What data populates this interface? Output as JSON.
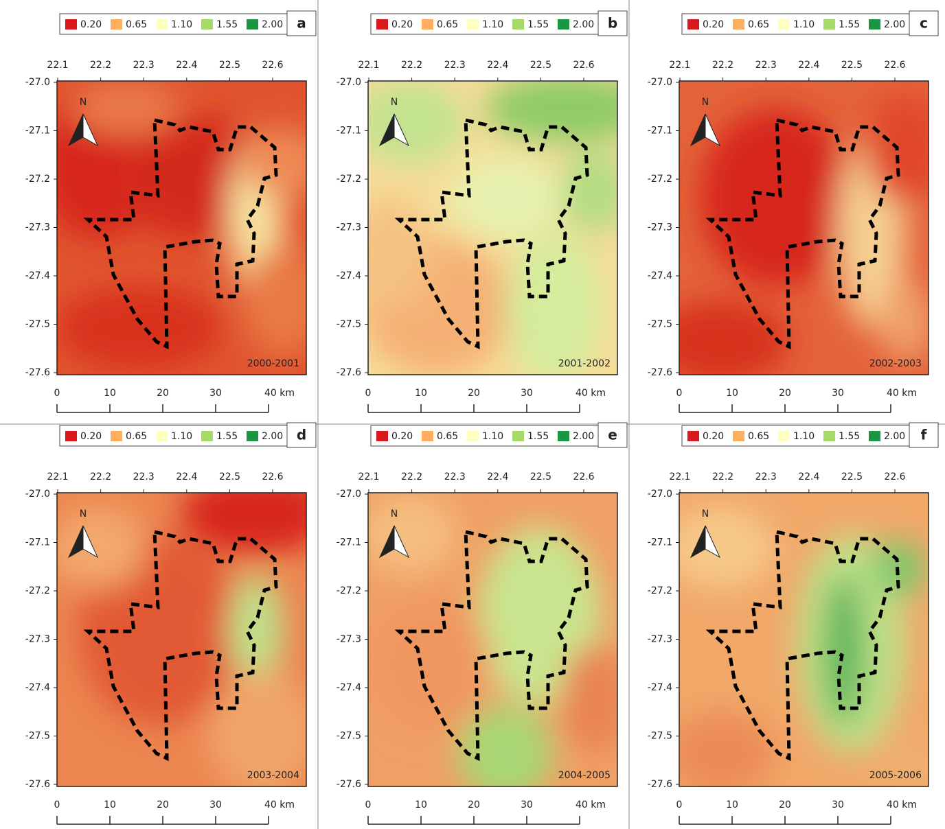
{
  "legend": [
    {
      "label": "0.20",
      "color": "#d7191c"
    },
    {
      "label": "0.65",
      "color": "#fdae61"
    },
    {
      "label": "1.10",
      "color": "#ffffbf"
    },
    {
      "label": "1.55",
      "color": "#a6d96a"
    },
    {
      "label": "2.00",
      "color": "#1a9641"
    }
  ],
  "lon_ticks": [
    "22.1",
    "22.2",
    "22.3",
    "22.4",
    "22.5",
    "22.6"
  ],
  "lat_ticks": [
    "-27.0",
    "-27.1",
    "-27.2",
    "-27.3",
    "-27.4",
    "-27.5",
    "-27.6"
  ],
  "scale_labels": [
    "0",
    "10",
    "20",
    "30",
    "40 km"
  ],
  "north_label": "N",
  "panels": [
    {
      "letter": "a",
      "period": "2000-2001"
    },
    {
      "letter": "b",
      "period": "2001-2002"
    },
    {
      "letter": "c",
      "period": "2002-2003"
    },
    {
      "letter": "d",
      "period": "2003-2004"
    },
    {
      "letter": "e",
      "period": "2004-2005"
    },
    {
      "letter": "f",
      "period": "2005-2006"
    }
  ]
}
